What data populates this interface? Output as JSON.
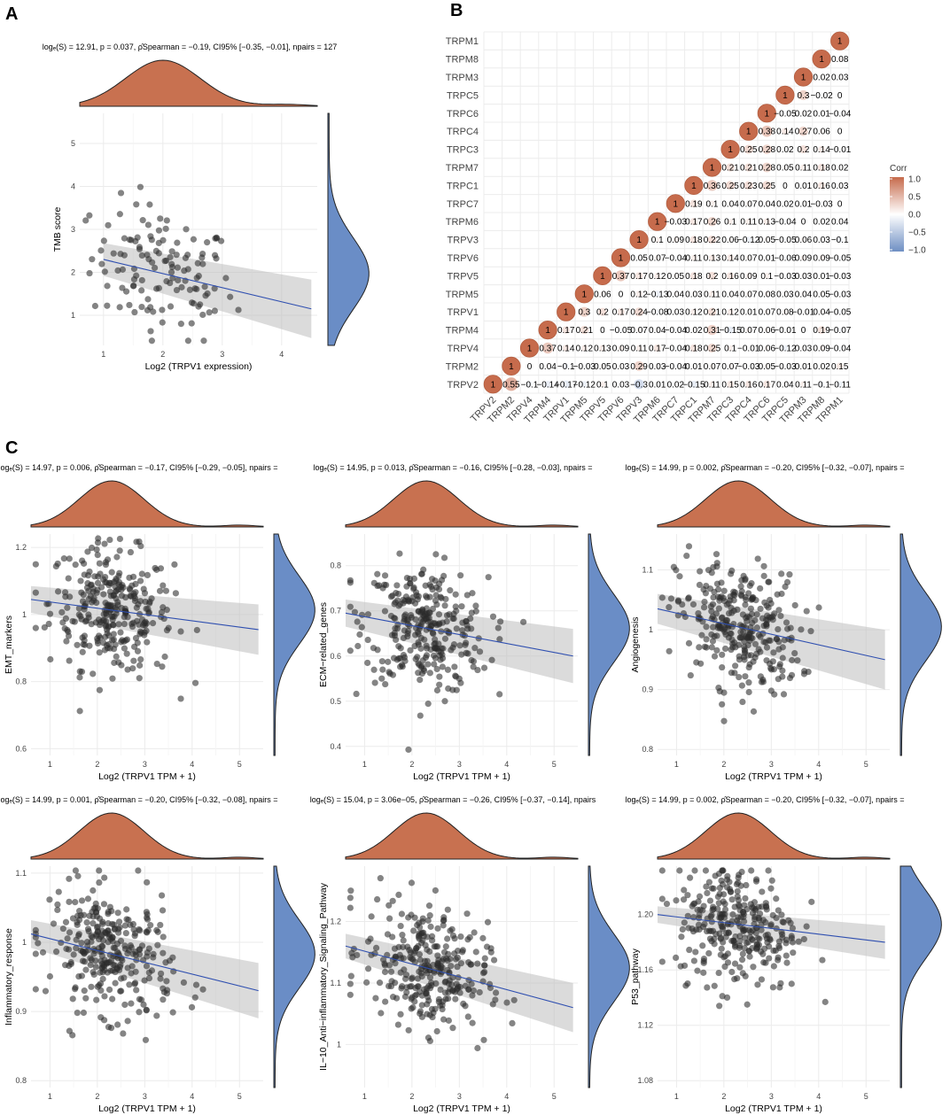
{
  "panels": {
    "a": "A",
    "b": "B",
    "c": "C"
  },
  "chart_data": [
    {
      "id": "A",
      "type": "scatter",
      "subtype": "ggscatterstats spearman with marginal densities",
      "stats": "logₑ(S) = 12.91, p = 0.037, ρ̂Spearman = −0.19, CI95% [−0.35, −0.01], npairs = 127",
      "xlabel": "Log2 (TRPV1 expression)",
      "ylabel": "TMB score",
      "xlim": [
        0.6,
        4.6
      ],
      "ylim": [
        0.3,
        5.7
      ],
      "xticks": [
        1,
        2,
        3,
        4
      ],
      "yticks": [
        1,
        2,
        3,
        4,
        5
      ],
      "fit": {
        "y_left": 2.3,
        "y_right": 1.15,
        "band_left": 0.38,
        "band_right": 0.68
      }
    },
    {
      "id": "B",
      "type": "heatmap",
      "subtype": "lower-triangle correlation bubbles",
      "rows": [
        "TRPM1",
        "TRPM8",
        "TRPM3",
        "TRPC5",
        "TRPC6",
        "TRPC4",
        "TRPC3",
        "TRPM7",
        "TRPC1",
        "TRPC7",
        "TRPM6",
        "TRPV3",
        "TRPV6",
        "TRPV5",
        "TRPM5",
        "TRPV1",
        "TRPM4",
        "TRPV4",
        "TRPM2",
        "TRPV2"
      ],
      "columns": [
        "TRPV2",
        "TRPM2",
        "TRPV4",
        "TRPM4",
        "TRPV1",
        "TRPM5",
        "TRPV5",
        "TRPV6",
        "TRPV3",
        "TRPM6",
        "TRPC7",
        "TRPC1",
        "TRPM7",
        "TRPC3",
        "TRPC4",
        "TRPC6",
        "TRPC5",
        "TRPM3",
        "TRPM8",
        "TRPM1"
      ],
      "legend": {
        "title": "Corr",
        "ticks": [
          "1.0",
          "0.5",
          "0.0",
          "−0.5",
          "−1.0"
        ],
        "low_color": "#6E8FC3",
        "mid_color": "#FFFFFF",
        "high_color": "#C66B4C"
      },
      "values": [
        [
          "1"
        ],
        [
          "1",
          "0.08"
        ],
        [
          "1",
          "0.02",
          "0.03"
        ],
        [
          "1",
          "0.3",
          "−0.02",
          "0"
        ],
        [
          "1",
          "−0.05",
          "0.02",
          "0.01",
          "−0.04"
        ],
        [
          "1",
          "0.38",
          "0.14",
          "0.27",
          "0.06",
          "0"
        ],
        [
          "1",
          "0.25",
          "0.28",
          "0.02",
          "0.2",
          "0.14",
          "−0.01"
        ],
        [
          "1",
          "0.21",
          "0.21",
          "0.28",
          "0.05",
          "0.11",
          "0.18",
          "0.02"
        ],
        [
          "1",
          "0.36",
          "0.25",
          "0.23",
          "0.25",
          "0",
          "0.01",
          "0.16",
          "0.03"
        ],
        [
          "1",
          "0.19",
          "0.1",
          "0.04",
          "0.07",
          "0.04",
          "0.02",
          "0.01",
          "−0.03",
          "0"
        ],
        [
          "1",
          "−0.03",
          "0.17",
          "0.26",
          "0.1",
          "0.11",
          "0.13",
          "−0.04",
          "0",
          "0.02",
          "0.04"
        ],
        [
          "1",
          "0.1",
          "0.09",
          "0.18",
          "0.22",
          "0.06",
          "−0.12",
          "0.05",
          "−0.05",
          "0.06",
          "0.03",
          "−0.1"
        ],
        [
          "1",
          "0.05",
          "0.07",
          "−0.04",
          "0.11",
          "0.13",
          "0.14",
          "0.07",
          "0.01",
          "−0.06",
          "0.09",
          "0.09",
          "−0.05"
        ],
        [
          "1",
          "0.37",
          "0.17",
          "0.12",
          "0.05",
          "0.18",
          "0.2",
          "0.16",
          "0.09",
          "0.1",
          "−0.03",
          "0.03",
          "0.01",
          "−0.03"
        ],
        [
          "1",
          "0.06",
          "0",
          "0.12",
          "−0.13",
          "0.04",
          "0.03",
          "0.11",
          "0.04",
          "0.07",
          "0.08",
          "0.03",
          "0.04",
          "0.05",
          "−0.03"
        ],
        [
          "1",
          "0.3",
          "0.2",
          "0.17",
          "0.24",
          "−0.08",
          "0.03",
          "0.12",
          "0.21",
          "0.12",
          "0.01",
          "0.07",
          "0.08",
          "−0.01",
          "0.04",
          "−0.05"
        ],
        [
          "1",
          "0.17",
          "0.21",
          "0",
          "−0.05",
          "0.07",
          "0.04",
          "−0.04",
          "0.02",
          "0.31",
          "−0.15",
          "0.07",
          "0.06",
          "−0.01",
          "0",
          "0.19",
          "−0.07"
        ],
        [
          "1",
          "0.37",
          "0.14",
          "0.12",
          "0.13",
          "0.09",
          "0.11",
          "0.17",
          "−0.04",
          "0.18",
          "0.25",
          "0.1",
          "−0.01",
          "0.06",
          "−0.12",
          "0.03",
          "0.09",
          "−0.04"
        ],
        [
          "1",
          "0",
          "0.04",
          "−0.1",
          "−0.03",
          "0.05",
          "0.03",
          "0.29",
          "0.03",
          "−0.04",
          "0.01",
          "0.07",
          "0.07",
          "−0.03",
          "0.05",
          "−0.03",
          "0.01",
          "0.02",
          "0.15"
        ],
        [
          "1",
          "0.55",
          "−0.1",
          "−0.14",
          "−0.17",
          "−0.12",
          "0.1",
          "0.03",
          "−0.3",
          "0.01",
          "0.02",
          "−0.15",
          "0.11",
          "0.15",
          "0.16",
          "0.17",
          "0.04",
          "0.11",
          "−0.1",
          "−0.11"
        ]
      ]
    },
    {
      "id": "C1",
      "type": "scatter",
      "stats": "logₑ(S) = 14.97, p = 0.006, ρ̂Spearman = −0.17, CI95% [−0.29, −0.05], npairs =",
      "xlabel": "Log2 (TRPV1 TPM + 1)",
      "ylabel": "EMT_markers",
      "xlim": [
        0.6,
        5.5
      ],
      "ylim": [
        0.58,
        1.24
      ],
      "xticks": [
        1,
        2,
        3,
        4,
        5
      ],
      "yticks": [
        0.6,
        0.8,
        1.0,
        1.2
      ],
      "fit": {
        "y_left": 1.045,
        "y_right": 0.955,
        "band_left": 0.04,
        "band_right": 0.075
      }
    },
    {
      "id": "C2",
      "type": "scatter",
      "stats": "logₑ(S) = 14.95, p = 0.013, ρ̂Spearman = −0.16, CI95% [−0.28, −0.03], npairs =",
      "xlabel": "Log2 (TRPV1 TPM + 1)",
      "ylabel": "ECM−related_genes",
      "xlim": [
        0.6,
        5.5
      ],
      "ylim": [
        0.38,
        0.87
      ],
      "xticks": [
        1,
        2,
        3,
        4,
        5
      ],
      "yticks": [
        0.4,
        0.5,
        0.6,
        0.7,
        0.8
      ],
      "fit": {
        "y_left": 0.695,
        "y_right": 0.6,
        "band_left": 0.03,
        "band_right": 0.06
      }
    },
    {
      "id": "C3",
      "type": "scatter",
      "stats": "logₑ(S) = 14.99, p = 0.002, ρ̂Spearman = −0.20, CI95% [−0.32, −0.07], npairs =",
      "xlabel": "Log2 (TRPV1 TPM + 1)",
      "ylabel": "Angiogenesis",
      "xlim": [
        0.6,
        5.5
      ],
      "ylim": [
        0.79,
        1.16
      ],
      "xticks": [
        1,
        2,
        3,
        4,
        5
      ],
      "yticks": [
        0.8,
        0.9,
        1.0,
        1.1
      ],
      "fit": {
        "y_left": 1.035,
        "y_right": 0.95,
        "band_left": 0.025,
        "band_right": 0.05
      }
    },
    {
      "id": "C4",
      "type": "scatter",
      "stats": "logₑ(S) = 14.99, p = 0.001, ρ̂Spearman = −0.20, CI95% [−0.32, −0.08], npairs =",
      "xlabel": "Log2 (TRPV1 TPM + 1)",
      "ylabel": "Inflammatory_response",
      "xlim": [
        0.6,
        5.5
      ],
      "ylim": [
        0.79,
        1.11
      ],
      "xticks": [
        1,
        2,
        3,
        4,
        5
      ],
      "yticks": [
        0.8,
        0.9,
        1.0,
        1.1
      ],
      "fit": {
        "y_left": 1.012,
        "y_right": 0.93,
        "band_left": 0.02,
        "band_right": 0.04
      }
    },
    {
      "id": "C5",
      "type": "scatter",
      "stats": "logₑ(S) = 15.04, p = 3.06e−05, ρ̂Spearman = −0.26, CI95% [−0.37, −0.14], npairs",
      "xlabel": "Log2 (TRPV1 TPM + 1)",
      "ylabel": "IL−10_Anti−inflammatory_Signaling_Pathway",
      "xlim": [
        0.6,
        5.5
      ],
      "ylim": [
        0.93,
        1.29
      ],
      "xticks": [
        1,
        2,
        3,
        4,
        5
      ],
      "yticks": [
        1.0,
        1.1,
        1.2
      ],
      "fit": {
        "y_left": 1.16,
        "y_right": 1.06,
        "band_left": 0.02,
        "band_right": 0.04
      }
    },
    {
      "id": "C6",
      "type": "scatter",
      "stats": "logₑ(S) = 14.99, p = 0.002, ρ̂Spearman = −0.20, CI95% [−0.32, −0.07], npairs =",
      "xlabel": "Log2 (TRPV1 TPM + 1)",
      "ylabel": "P53_pathway",
      "xlim": [
        0.6,
        5.5
      ],
      "ylim": [
        1.075,
        1.235
      ],
      "xticks": [
        1,
        2,
        3,
        4,
        5
      ],
      "yticks": [
        1.08,
        1.12,
        1.16,
        1.2
      ],
      "fit": {
        "y_left": 1.2,
        "y_right": 1.18,
        "band_left": 0.006,
        "band_right": 0.012
      }
    }
  ]
}
